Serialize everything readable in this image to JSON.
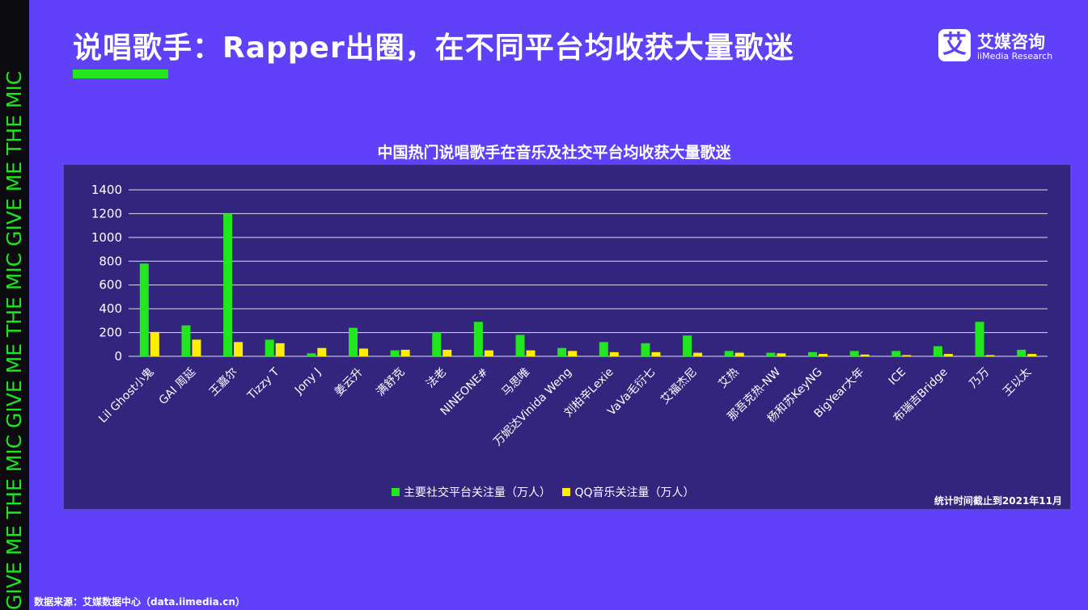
{
  "side_text": "GIVE ME THE MIC   GIVE ME THE MIC   GIVE ME THE MIC",
  "page_title": "说唱歌手：Rapper出圈，在不同平台均收获大量歌迷",
  "logo": {
    "mark": "艾",
    "name": "艾媒咨询",
    "sub": "iiMedia Research"
  },
  "colors": {
    "background": "#6040f8",
    "chart_bg": "#33247e",
    "social": "#22e61e",
    "qq": "#ffee00"
  },
  "chart_data": {
    "type": "bar",
    "title": "中国热门说唱歌手在音乐及社交平台均收获大量歌迷",
    "categories": [
      "Lil Ghost小鬼",
      "GAI 周延",
      "王嘉尔",
      "Tizzy T",
      "Jony J",
      "姜云升",
      "满舒克",
      "法老",
      "NINEONE#",
      "马思唯",
      "万妮达Vinida Weng",
      "刘柏辛Lexie",
      "VaVa毛衍七",
      "艾福杰尼",
      "艾热",
      "那吾克热-NW",
      "杨和苏KeyNG",
      "BigYear大年",
      "ICE",
      "布瑞吉Bridge",
      "乃万",
      "王以太"
    ],
    "series": [
      {
        "name": "主要社交平台关注量（万人）",
        "color": "#22e61e",
        "values": [
          780,
          260,
          1200,
          140,
          25,
          240,
          50,
          205,
          290,
          180,
          70,
          120,
          110,
          175,
          45,
          30,
          35,
          45,
          45,
          85,
          290,
          55
        ]
      },
      {
        "name": "QQ音乐关注量（万人）",
        "color": "#ffee00",
        "values": [
          205,
          140,
          120,
          110,
          70,
          65,
          55,
          55,
          50,
          50,
          45,
          35,
          35,
          30,
          30,
          25,
          20,
          15,
          10,
          20,
          10,
          20
        ]
      }
    ],
    "y_ticks": [
      0,
      200,
      400,
      600,
      800,
      1000,
      1200,
      1400
    ],
    "ylim": [
      0,
      1400
    ],
    "grid": true,
    "legend_position": "bottom",
    "note": "统计时间截止到2021年11月"
  },
  "source": "数据来源：艾媒数据中心（data.iimedia.cn）"
}
